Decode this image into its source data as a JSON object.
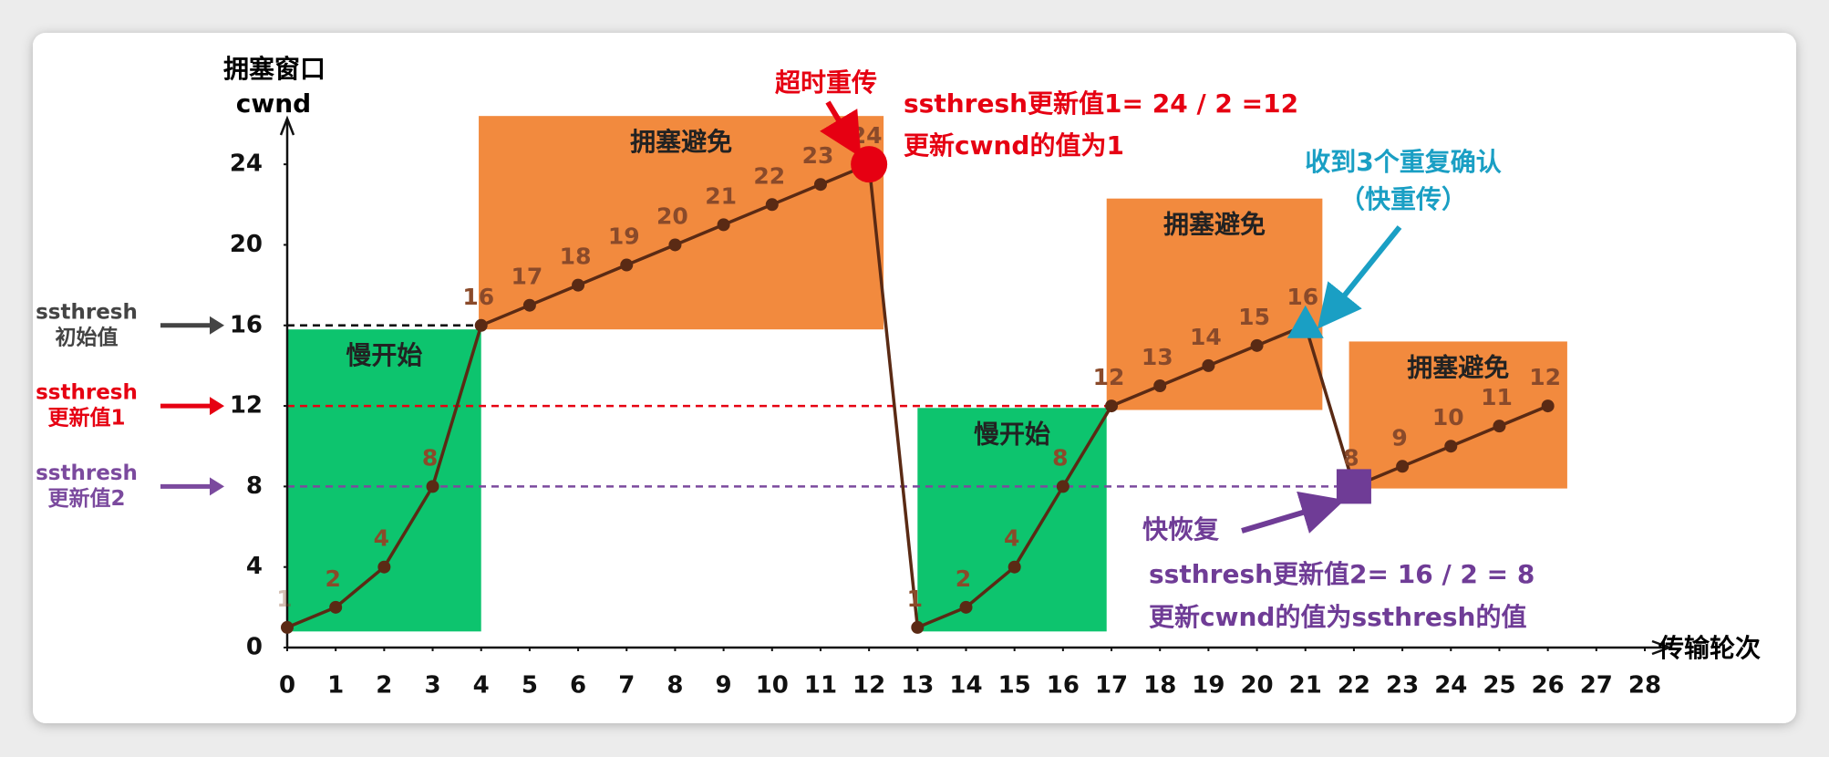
{
  "chart_data": {
    "type": "line",
    "ylabel": [
      "拥塞窗口",
      "cwnd"
    ],
    "xlabel": "传输轮次",
    "x": [
      0,
      1,
      2,
      3,
      4,
      5,
      6,
      7,
      8,
      9,
      10,
      11,
      12,
      13,
      14,
      15,
      16,
      17,
      18,
      19,
      20,
      21,
      22,
      23,
      24,
      25,
      26
    ],
    "values": [
      1,
      2,
      4,
      8,
      16,
      17,
      18,
      19,
      20,
      21,
      22,
      23,
      24,
      1,
      2,
      4,
      8,
      12,
      13,
      14,
      15,
      16,
      8,
      9,
      10,
      11,
      12
    ],
    "color": "#5a2a14",
    "label_color": "#8a4a2a",
    "xlim": [
      0,
      28
    ],
    "xticks": [
      0,
      1,
      2,
      3,
      4,
      5,
      6,
      7,
      8,
      9,
      10,
      11,
      12,
      13,
      14,
      15,
      16,
      17,
      18,
      19,
      20,
      21,
      22,
      23,
      24,
      25,
      26,
      27,
      28
    ],
    "ylim": [
      0,
      26
    ],
    "yticks": [
      0,
      4,
      8,
      12,
      16,
      20,
      24
    ],
    "regions": [
      {
        "label": "慢开始",
        "color": "#0dc46e",
        "x": [
          0,
          4
        ],
        "y": [
          0.8,
          15.8
        ]
      },
      {
        "label": "拥塞避免",
        "color": "#f28a3e",
        "x": [
          3.95,
          12.3
        ],
        "y": [
          15.8,
          26.4
        ]
      },
      {
        "label": "慢开始",
        "color": "#0dc46e",
        "x": [
          13,
          16.9
        ],
        "y": [
          0.8,
          11.9
        ]
      },
      {
        "label": "拥塞避免",
        "color": "#f28a3e",
        "x": [
          16.9,
          21.35
        ],
        "y": [
          11.8,
          22.3
        ]
      },
      {
        "label": "拥塞避免",
        "color": "#f28a3e",
        "x": [
          21.9,
          26.4
        ],
        "y": [
          7.9,
          15.2
        ]
      }
    ],
    "thresholds": [
      {
        "value": 16,
        "label": [
          "ssthresh",
          "初始值"
        ],
        "color": "#444444",
        "line_color": "#000000",
        "x": [
          0,
          4
        ]
      },
      {
        "value": 12,
        "label": [
          "ssthresh",
          "更新值1"
        ],
        "color": "#e60012",
        "line_color": "#e60012",
        "x": [
          0,
          17
        ]
      },
      {
        "value": 8,
        "label": [
          "ssthresh",
          "更新值2"
        ],
        "color": "#7b4a9e",
        "line_color": "#7b4a9e",
        "x": [
          0,
          22
        ]
      }
    ],
    "markers": [
      {
        "x": 12,
        "shape": "circle",
        "color": "#e60012"
      },
      {
        "x": 21,
        "shape": "triangle",
        "color": "#1a9fc4"
      },
      {
        "x": 22,
        "shape": "square",
        "color": "#6f3c96"
      }
    ],
    "annotations": [
      "超时重传",
      "ssthresh更新值1= 24 / 2 =12",
      "更新cwnd的值为1",
      "收到3个重复确认",
      "（快重传）",
      "快恢复",
      "ssthresh更新值2= 16 / 2 = 8",
      "更新cwnd的值为ssthresh的值"
    ]
  }
}
